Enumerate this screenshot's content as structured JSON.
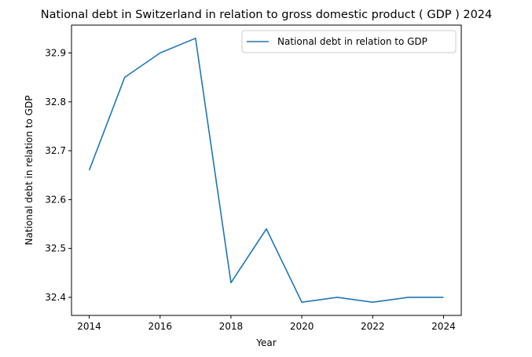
{
  "chart_data": {
    "type": "line",
    "title": "National debt in Switzerland in relation to gross domestic product ( GDP ) 2024",
    "xlabel": "Year",
    "ylabel": "National debt in relation to GDP",
    "x": [
      2014,
      2015,
      2016,
      2017,
      2018,
      2019,
      2020,
      2021,
      2022,
      2023,
      2024
    ],
    "series": [
      {
        "name": "National debt in relation to GDP",
        "color": "#1f77b4",
        "values": [
          32.66,
          32.85,
          32.9,
          32.93,
          32.43,
          32.54,
          32.39,
          32.4,
          32.39,
          32.4,
          32.4
        ]
      }
    ],
    "x_ticks": [
      "2014",
      "2016",
      "2018",
      "2020",
      "2022",
      "2024"
    ],
    "y_ticks": [
      "32.4",
      "32.5",
      "32.6",
      "32.7",
      "32.8",
      "32.9"
    ],
    "xlim": [
      2013.5,
      2024.5
    ],
    "ylim": [
      32.363,
      32.957
    ],
    "grid": false,
    "legend_position": "top-right"
  }
}
